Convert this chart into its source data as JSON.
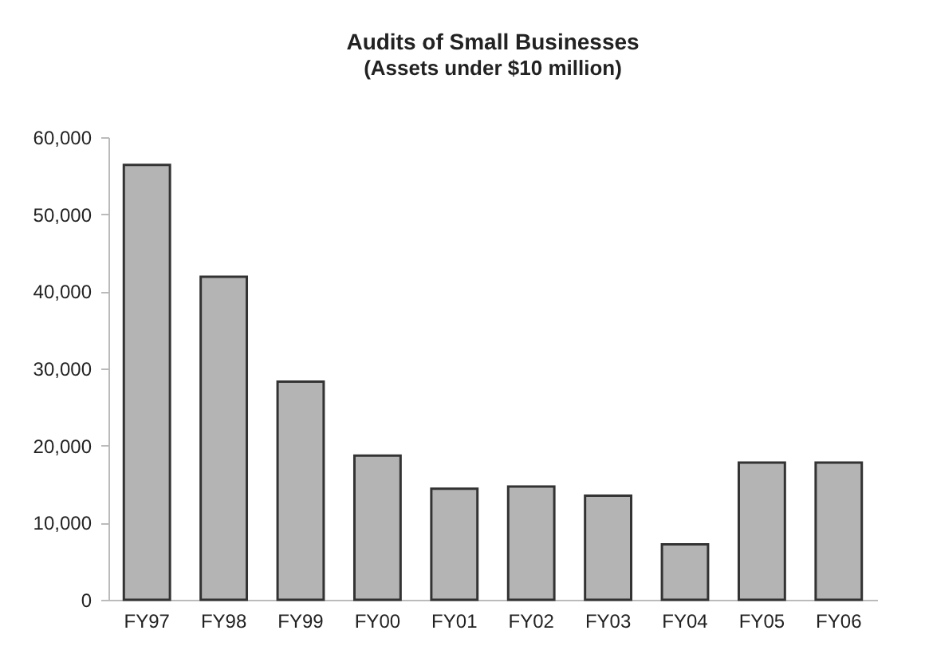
{
  "chart_data": {
    "type": "bar",
    "title": "Audits of Small Businesses",
    "subtitle": "(Assets under $10 million)",
    "categories": [
      "FY97",
      "FY98",
      "FY99",
      "FY00",
      "FY01",
      "FY02",
      "FY03",
      "FY04",
      "FY05",
      "FY06"
    ],
    "values": [
      56400,
      41900,
      28300,
      18700,
      14400,
      14700,
      13500,
      7200,
      17800,
      17800
    ],
    "color": "#b4b4b4",
    "ylim": [
      0,
      60000
    ],
    "yticks": [
      0,
      {
        "value": 10000,
        "label": "10,000"
      },
      {
        "value": 20000,
        "label": "20,000"
      },
      {
        "value": 30000,
        "label": "30,000"
      },
      {
        "value": 40000,
        "label": "40,000"
      },
      {
        "value": 50000,
        "label": "50,000"
      },
      {
        "value": 60000,
        "label": "60,000"
      }
    ],
    "grid": false
  }
}
